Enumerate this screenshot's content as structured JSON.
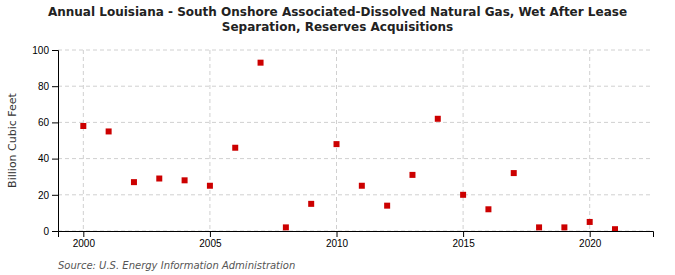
{
  "chart_data": {
    "type": "scatter",
    "title": "Annual Louisiana - South Onshore Associated-Dissolved Natural Gas, Wet After Lease\nSeparation, Reserves Acquisitions",
    "y_label": "Billion Cubic Feet",
    "source": "Source: U.S. Energy Information Administration",
    "x": [
      2000,
      2001,
      2002,
      2003,
      2004,
      2005,
      2006,
      2007,
      2008,
      2009,
      2010,
      2011,
      2012,
      2013,
      2014,
      2015,
      2016,
      2017,
      2018,
      2019,
      2020,
      2021
    ],
    "values": [
      58,
      55,
      27,
      29,
      28,
      25,
      46,
      93,
      2,
      15,
      48,
      25,
      14,
      31,
      62,
      20,
      12,
      32,
      2,
      2,
      5,
      1
    ],
    "color": "#cc0000",
    "marker": "square",
    "xlim": [
      1999,
      2022.5
    ],
    "xticks": [
      2000,
      2005,
      2010,
      2015,
      2020
    ],
    "ylim": [
      0,
      100
    ],
    "yticks": [
      0,
      20,
      40,
      60,
      80,
      100
    ],
    "grid": true
  }
}
